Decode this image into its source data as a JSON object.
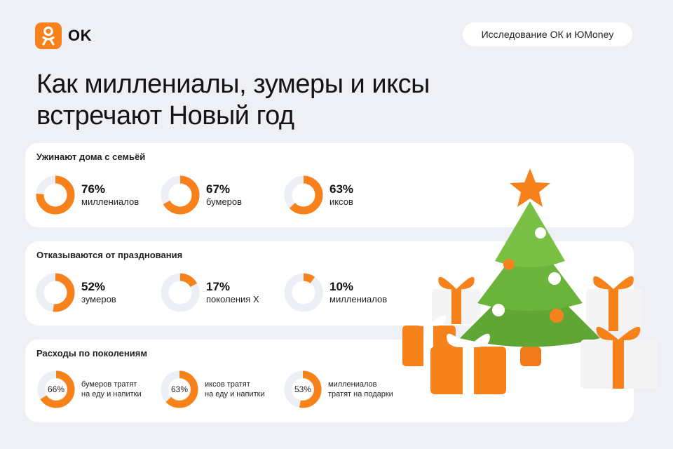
{
  "brand": {
    "name": "OK",
    "accent": "#f7821b",
    "ring_bg": "#eceff6"
  },
  "badge": "Исследование ОК и ЮMoney",
  "headline": {
    "line1": "Как миллениалы, зумеры и иксы",
    "line2": "встречают Новый год"
  },
  "sections": [
    {
      "title": "Ужинают дома с семьёй",
      "stats": [
        {
          "pct": "76%",
          "value": 76,
          "label": "миллениалов"
        },
        {
          "pct": "67%",
          "value": 67,
          "label": "бумеров"
        },
        {
          "pct": "63%",
          "value": 63,
          "label": "иксов"
        }
      ]
    },
    {
      "title": "Отказываются от празднования",
      "stats": [
        {
          "pct": "52%",
          "value": 52,
          "label": "зумеров"
        },
        {
          "pct": "17%",
          "value": 17,
          "label": "поколения X"
        },
        {
          "pct": "10%",
          "value": 10,
          "label": "миллениалов"
        }
      ]
    },
    {
      "title": "Расходы по поколениям",
      "stats": [
        {
          "pct": "66%",
          "value": 66,
          "label1": "бумеров тратят",
          "label2": "на еду и напитки"
        },
        {
          "pct": "63%",
          "value": 63,
          "label1": "иксов тратят",
          "label2": "на еду и напитки"
        },
        {
          "pct": "53%",
          "value": 53,
          "label1": "миллениалов",
          "label2": "тратят на подарки"
        }
      ]
    }
  ],
  "illustration": "christmas-tree-with-gifts"
}
